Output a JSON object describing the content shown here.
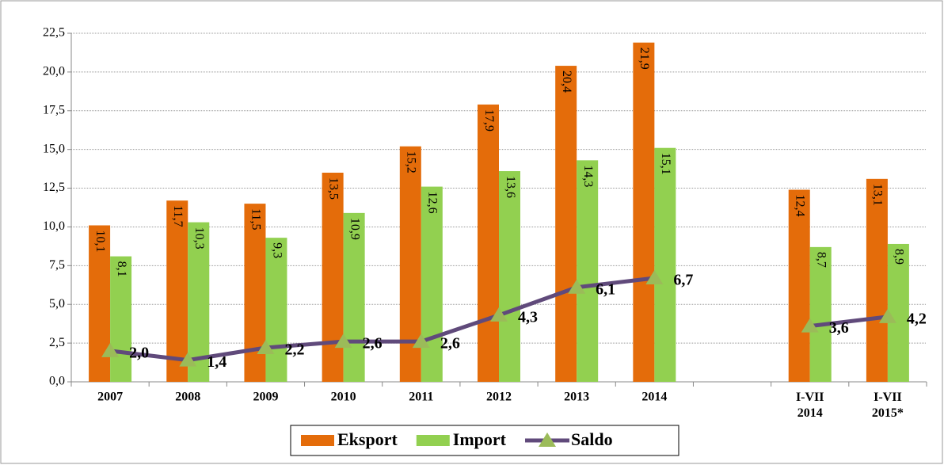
{
  "chart_data": {
    "type": "bar-line",
    "categories": [
      "2007",
      "2008",
      "2009",
      "2010",
      "2011",
      "2012",
      "2013",
      "2014",
      null,
      "I-VII 2014",
      "I-VII 2015*"
    ],
    "series": [
      {
        "name": "Eksport",
        "type": "bar",
        "color": "#e46c0a",
        "values": [
          10.1,
          11.7,
          11.5,
          13.5,
          15.2,
          17.9,
          20.4,
          21.9,
          null,
          12.4,
          13.1
        ],
        "value_labels": [
          "10,1",
          "11,7",
          "11,5",
          "13,5",
          "15,2",
          "17,9",
          "20,4",
          "21,9",
          null,
          "12,4",
          "13,1"
        ]
      },
      {
        "name": "Import",
        "type": "bar",
        "color": "#92d050",
        "values": [
          8.1,
          10.3,
          9.3,
          10.9,
          12.6,
          13.6,
          14.3,
          15.1,
          null,
          8.7,
          8.9
        ],
        "value_labels": [
          "8,1",
          "10,3",
          "9,3",
          "10,9",
          "12,6",
          "13,6",
          "14,3",
          "15,1",
          null,
          "8,7",
          "8,9"
        ]
      },
      {
        "name": "Saldo",
        "type": "line",
        "color": "#604a7b",
        "marker_color": "#9bbb59",
        "values": [
          2.0,
          1.4,
          2.2,
          2.6,
          2.6,
          4.3,
          6.1,
          6.7,
          null,
          3.6,
          4.2
        ],
        "value_labels": [
          "2,0",
          "1,4",
          "2,2",
          "2,6",
          "2,6",
          "4,3",
          "6,1",
          "6,7",
          null,
          "3,6",
          "4,2"
        ]
      }
    ],
    "ylim": [
      0,
      22.5
    ],
    "yticks": [
      {
        "value": 0,
        "label": "0,0"
      },
      {
        "value": 2.5,
        "label": "2,5"
      },
      {
        "value": 5,
        "label": "5,0"
      },
      {
        "value": 7.5,
        "label": "7,5"
      },
      {
        "value": 10,
        "label": "10,0"
      },
      {
        "value": 12.5,
        "label": "12,5"
      },
      {
        "value": 15,
        "label": "15,0"
      },
      {
        "value": 17.5,
        "label": "17,5"
      },
      {
        "value": 20,
        "label": "20,0"
      },
      {
        "value": 22.5,
        "label": "22,5"
      }
    ],
    "grid": true,
    "legend": "bottom"
  }
}
